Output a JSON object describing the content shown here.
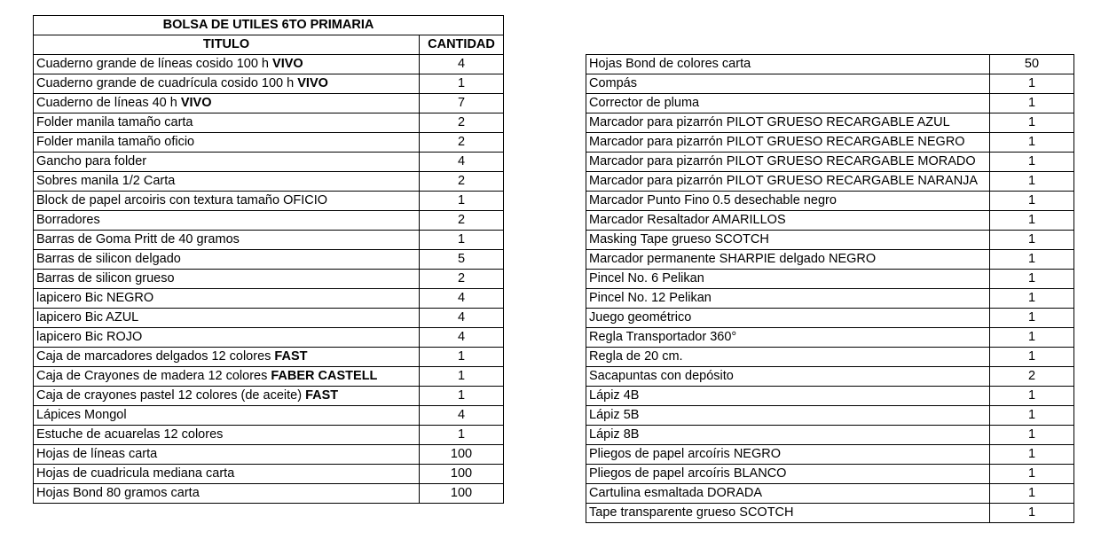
{
  "left_table": {
    "title": "BOLSA DE UTILES 6TO PRIMARIA",
    "headers": [
      "TITULO",
      "CANTIDAD"
    ],
    "rows": [
      {
        "item": "Cuaderno grande de líneas cosido 100 h",
        "brand": "VIVO",
        "qty": 4
      },
      {
        "item": "Cuaderno grande de cuadrícula cosido 100 h",
        "brand": "VIVO",
        "qty": 1
      },
      {
        "item": "Cuaderno de líneas 40 h",
        "brand": "VIVO",
        "qty": 7
      },
      {
        "item": "Folder manila tamaño carta",
        "qty": 2
      },
      {
        "item": "Folder manila tamaño oficio",
        "qty": 2
      },
      {
        "item": "Gancho para folder",
        "qty": 4
      },
      {
        "item": "Sobres manila 1/2 Carta",
        "qty": 2
      },
      {
        "item": "Block de papel arcoiris con textura tamaño OFICIO",
        "qty": 1
      },
      {
        "item": "Borradores",
        "qty": 2
      },
      {
        "item": "Barras de Goma Pritt de 40 gramos",
        "qty": 1
      },
      {
        "item": "Barras de silicon delgado",
        "qty": 5
      },
      {
        "item": "Barras de silicon grueso",
        "qty": 2
      },
      {
        "item": "lapicero Bic NEGRO",
        "qty": 4
      },
      {
        "item": "lapicero Bic AZUL",
        "qty": 4
      },
      {
        "item": "lapicero Bic ROJO",
        "qty": 4
      },
      {
        "item": "Caja de marcadores delgados 12 colores",
        "brand": "FAST",
        "qty": 1
      },
      {
        "item": "Caja de Crayones de madera 12 colores",
        "brand": "FABER CASTELL",
        "qty": 1
      },
      {
        "item": "Caja de crayones pastel 12 colores (de aceite)",
        "brand": "FAST",
        "qty": 1
      },
      {
        "item": "Lápices Mongol",
        "qty": 4
      },
      {
        "item": "Estuche de acuarelas 12 colores",
        "qty": 1
      },
      {
        "item": "Hojas de líneas carta",
        "qty": 100
      },
      {
        "item": "Hojas de cuadricula mediana carta",
        "qty": 100
      },
      {
        "item": "Hojas Bond 80 gramos carta",
        "qty": 100
      }
    ]
  },
  "right_table": {
    "rows": [
      {
        "item": "Hojas Bond de colores carta",
        "qty": 50
      },
      {
        "item": "Compás",
        "qty": 1
      },
      {
        "item": "Corrector de pluma",
        "qty": 1
      },
      {
        "item": "Marcador para pizarrón PILOT GRUESO RECARGABLE  AZUL",
        "qty": 1
      },
      {
        "item": "Marcador para pizarrón PILOT GRUESO RECARGABLE  NEGRO",
        "qty": 1
      },
      {
        "item": "Marcador para pizarrón PILOT GRUESO RECARGABLE  MORADO",
        "qty": 1
      },
      {
        "item": "Marcador para pizarrón PILOT GRUESO RECARGABLE  NARANJA",
        "qty": 1
      },
      {
        "item": "Marcador Punto Fino 0.5 desechable negro",
        "qty": 1
      },
      {
        "item": "Marcador Resaltador AMARILLOS",
        "qty": 1
      },
      {
        "item": "Masking Tape grueso SCOTCH",
        "qty": 1
      },
      {
        "item": "Marcador permanente SHARPIE delgado NEGRO",
        "qty": 1
      },
      {
        "item": "Pincel No. 6 Pelikan",
        "qty": 1
      },
      {
        "item": "Pincel No. 12 Pelikan",
        "qty": 1
      },
      {
        "item": "Juego geométrico",
        "qty": 1
      },
      {
        "item": "Regla Transportador 360°",
        "qty": 1
      },
      {
        "item": "Regla de 20 cm.",
        "qty": 1
      },
      {
        "item": "Sacapuntas con depósito",
        "qty": 2
      },
      {
        "item": "Lápiz 4B",
        "qty": 1
      },
      {
        "item": "Lápiz 5B",
        "qty": 1
      },
      {
        "item": "Lápiz 8B",
        "qty": 1
      },
      {
        "item": "Pliegos de papel arcoíris NEGRO",
        "qty": 1
      },
      {
        "item": "Pliegos de papel arcoíris BLANCO",
        "qty": 1
      },
      {
        "item": "Cartulina esmaltada DORADA",
        "qty": 1
      },
      {
        "item": "Tape transparente grueso SCOTCH",
        "qty": 1
      }
    ]
  }
}
